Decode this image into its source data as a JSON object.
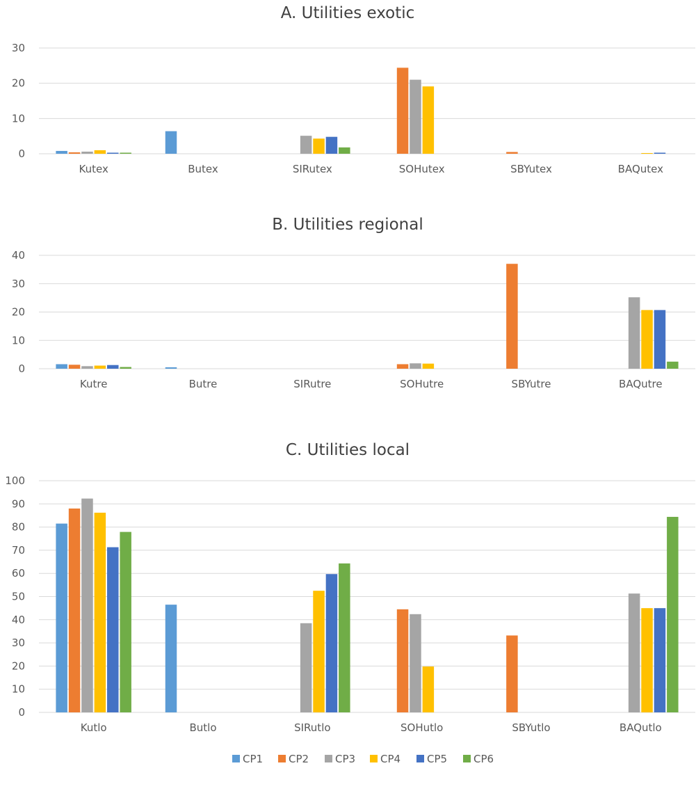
{
  "colors": {
    "CP1": "#5b9bd5",
    "CP2": "#ed7d31",
    "CP3": "#a5a5a5",
    "CP4": "#ffc000",
    "CP5": "#4472c4",
    "CP6": "#70ad47"
  },
  "legend": [
    "CP1",
    "CP2",
    "CP3",
    "CP4",
    "CP5",
    "CP6"
  ],
  "chart_data": [
    {
      "type": "bar",
      "title": "A. Utilities exotic",
      "categories": [
        "Kutex",
        "Butex",
        "SIRutex",
        "SOHutex",
        "SBYutex",
        "BAQutex"
      ],
      "ylim": [
        0,
        30
      ],
      "yticks": [
        0,
        10,
        20,
        30
      ],
      "grid": true,
      "series": [
        {
          "name": "CP1",
          "values": [
            0.8,
            6.4,
            0,
            0,
            0,
            0
          ]
        },
        {
          "name": "CP2",
          "values": [
            0.4,
            0,
            0,
            24.4,
            0.5,
            0
          ]
        },
        {
          "name": "CP3",
          "values": [
            0.6,
            0,
            5.1,
            21.0,
            0,
            0
          ]
        },
        {
          "name": "CP4",
          "values": [
            1.0,
            0,
            4.3,
            19.1,
            0,
            0.2
          ]
        },
        {
          "name": "CP5",
          "values": [
            0.3,
            0,
            4.8,
            0,
            0,
            0.3
          ]
        },
        {
          "name": "CP6",
          "values": [
            0.3,
            0,
            1.8,
            0,
            0,
            0
          ]
        }
      ]
    },
    {
      "type": "bar",
      "title": "B. Utilities regional",
      "categories": [
        "Kutre",
        "Butre",
        "SIRutre",
        "SOHutre",
        "SBYutre",
        "BAQutre"
      ],
      "ylim": [
        0,
        40
      ],
      "yticks": [
        0,
        10,
        20,
        30,
        40
      ],
      "grid": true,
      "series": [
        {
          "name": "CP1",
          "values": [
            1.6,
            0.5,
            0,
            0,
            0,
            0
          ]
        },
        {
          "name": "CP2",
          "values": [
            1.4,
            0,
            0,
            1.6,
            37.0,
            0
          ]
        },
        {
          "name": "CP3",
          "values": [
            0.9,
            0,
            0,
            1.9,
            0,
            25.2
          ]
        },
        {
          "name": "CP4",
          "values": [
            1.1,
            0,
            0,
            1.8,
            0,
            20.7
          ]
        },
        {
          "name": "CP5",
          "values": [
            1.3,
            0,
            0,
            0,
            0,
            20.7
          ]
        },
        {
          "name": "CP6",
          "values": [
            0.6,
            0,
            0,
            0,
            0,
            2.5
          ]
        }
      ]
    },
    {
      "type": "bar",
      "title": "C. Utilities local",
      "categories": [
        "Kutlo",
        "Butlo",
        "SIRutlo",
        "SOHutlo",
        "SBYutlo",
        "BAQutlo"
      ],
      "ylim": [
        0,
        100
      ],
      "yticks": [
        0,
        10,
        20,
        30,
        40,
        50,
        60,
        70,
        80,
        90,
        100
      ],
      "grid": true,
      "legend_position": "bottom",
      "series": [
        {
          "name": "CP1",
          "values": [
            81.5,
            46.5,
            0,
            0,
            0,
            0
          ]
        },
        {
          "name": "CP2",
          "values": [
            88.0,
            0,
            0,
            44.5,
            33.2,
            0
          ]
        },
        {
          "name": "CP3",
          "values": [
            92.3,
            0,
            38.5,
            42.4,
            0,
            51.3
          ]
        },
        {
          "name": "CP4",
          "values": [
            86.2,
            0,
            52.5,
            19.8,
            0,
            45.0
          ]
        },
        {
          "name": "CP5",
          "values": [
            71.3,
            0,
            59.7,
            0,
            0,
            45.0
          ]
        },
        {
          "name": "CP6",
          "values": [
            77.9,
            0,
            64.3,
            0,
            0,
            84.4
          ]
        }
      ]
    }
  ]
}
